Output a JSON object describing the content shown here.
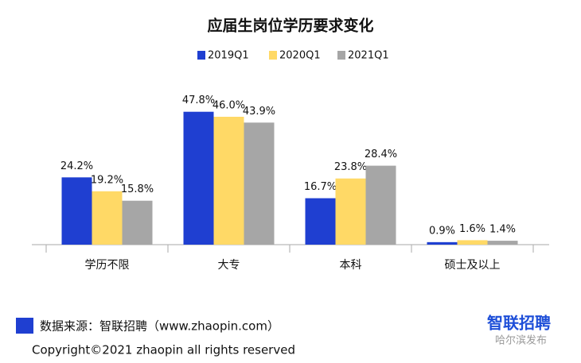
{
  "chart_data": {
    "type": "bar",
    "title": "应届生岗位学历要求变化",
    "categories": [
      "学历不限",
      "大专",
      "本科",
      "硕士及以上"
    ],
    "series": [
      {
        "name": "2019Q1",
        "color": "#1f3fd1",
        "values": [
          24.2,
          47.8,
          16.7,
          0.9
        ],
        "value_labels": [
          "24.2%",
          "47.8%",
          "16.7%",
          "0.9%"
        ]
      },
      {
        "name": "2020Q1",
        "color": "#ffd966",
        "values": [
          19.2,
          46.0,
          23.8,
          1.6
        ],
        "value_labels": [
          "19.2%",
          "46.0%",
          "23.8%",
          "1.6%"
        ]
      },
      {
        "name": "2021Q1",
        "color": "#a6a6a6",
        "values": [
          15.8,
          43.9,
          28.4,
          1.4
        ],
        "value_labels": [
          "15.8%",
          "43.9%",
          "28.4%",
          "1.4%"
        ]
      }
    ]
  },
  "source": "数据来源：智联招聘（www.zhaopin.com）",
  "copyright": "Copyright©2021 zhaopin all rights reserved",
  "logo": "智联招聘",
  "watermark": "哈尔滨发布"
}
